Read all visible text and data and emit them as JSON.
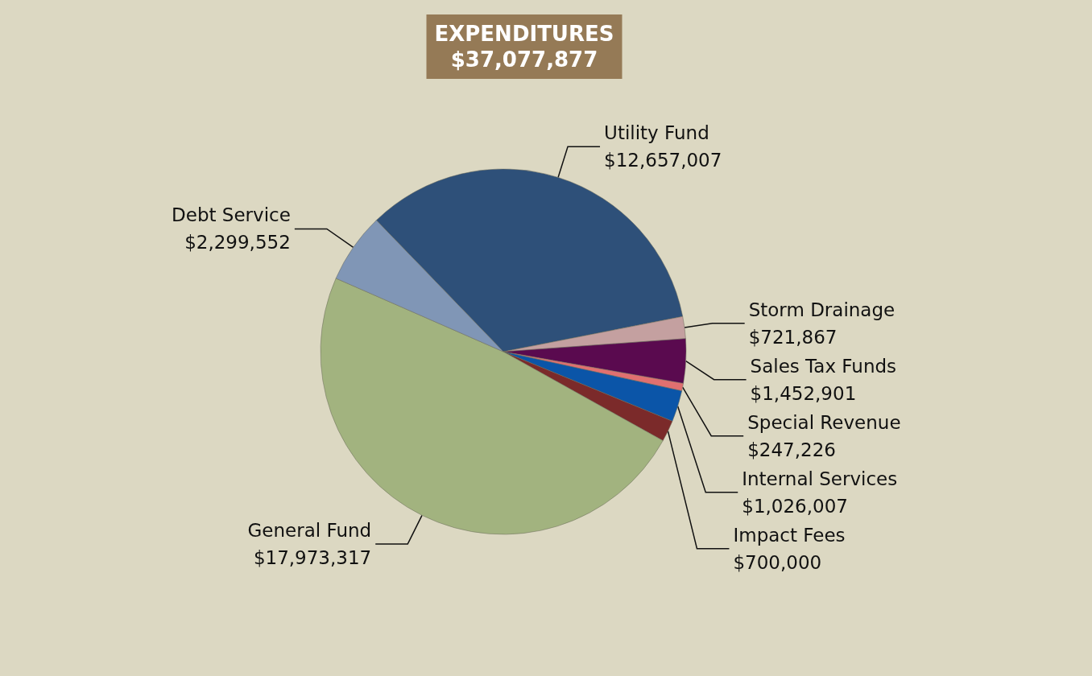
{
  "chart_data": {
    "type": "pie",
    "title": "EXPENDITURES\n$37,077,877",
    "categories": [
      "Utility Fund",
      "Storm Drainage",
      "Sales Tax Funds",
      "Special Revenue",
      "Internal Services",
      "Impact Fees",
      "General Fund",
      "Debt Service"
    ],
    "values": [
      12657007,
      721867,
      1452901,
      247226,
      1026007,
      700000,
      17973317,
      2299552
    ],
    "value_labels": [
      "$12,657,007",
      "$721,867",
      "$1,452,901",
      "$247,226",
      "$1,026,007",
      "$700,000",
      "$17,973,317",
      "$2,299,552"
    ],
    "colors": [
      "#2e5079",
      "#c4a0a0",
      "#5a0a4f",
      "#e07070",
      "#0b55a8",
      "#7b2a2a",
      "#a2b37f",
      "#8096b6"
    ],
    "legend": false
  }
}
